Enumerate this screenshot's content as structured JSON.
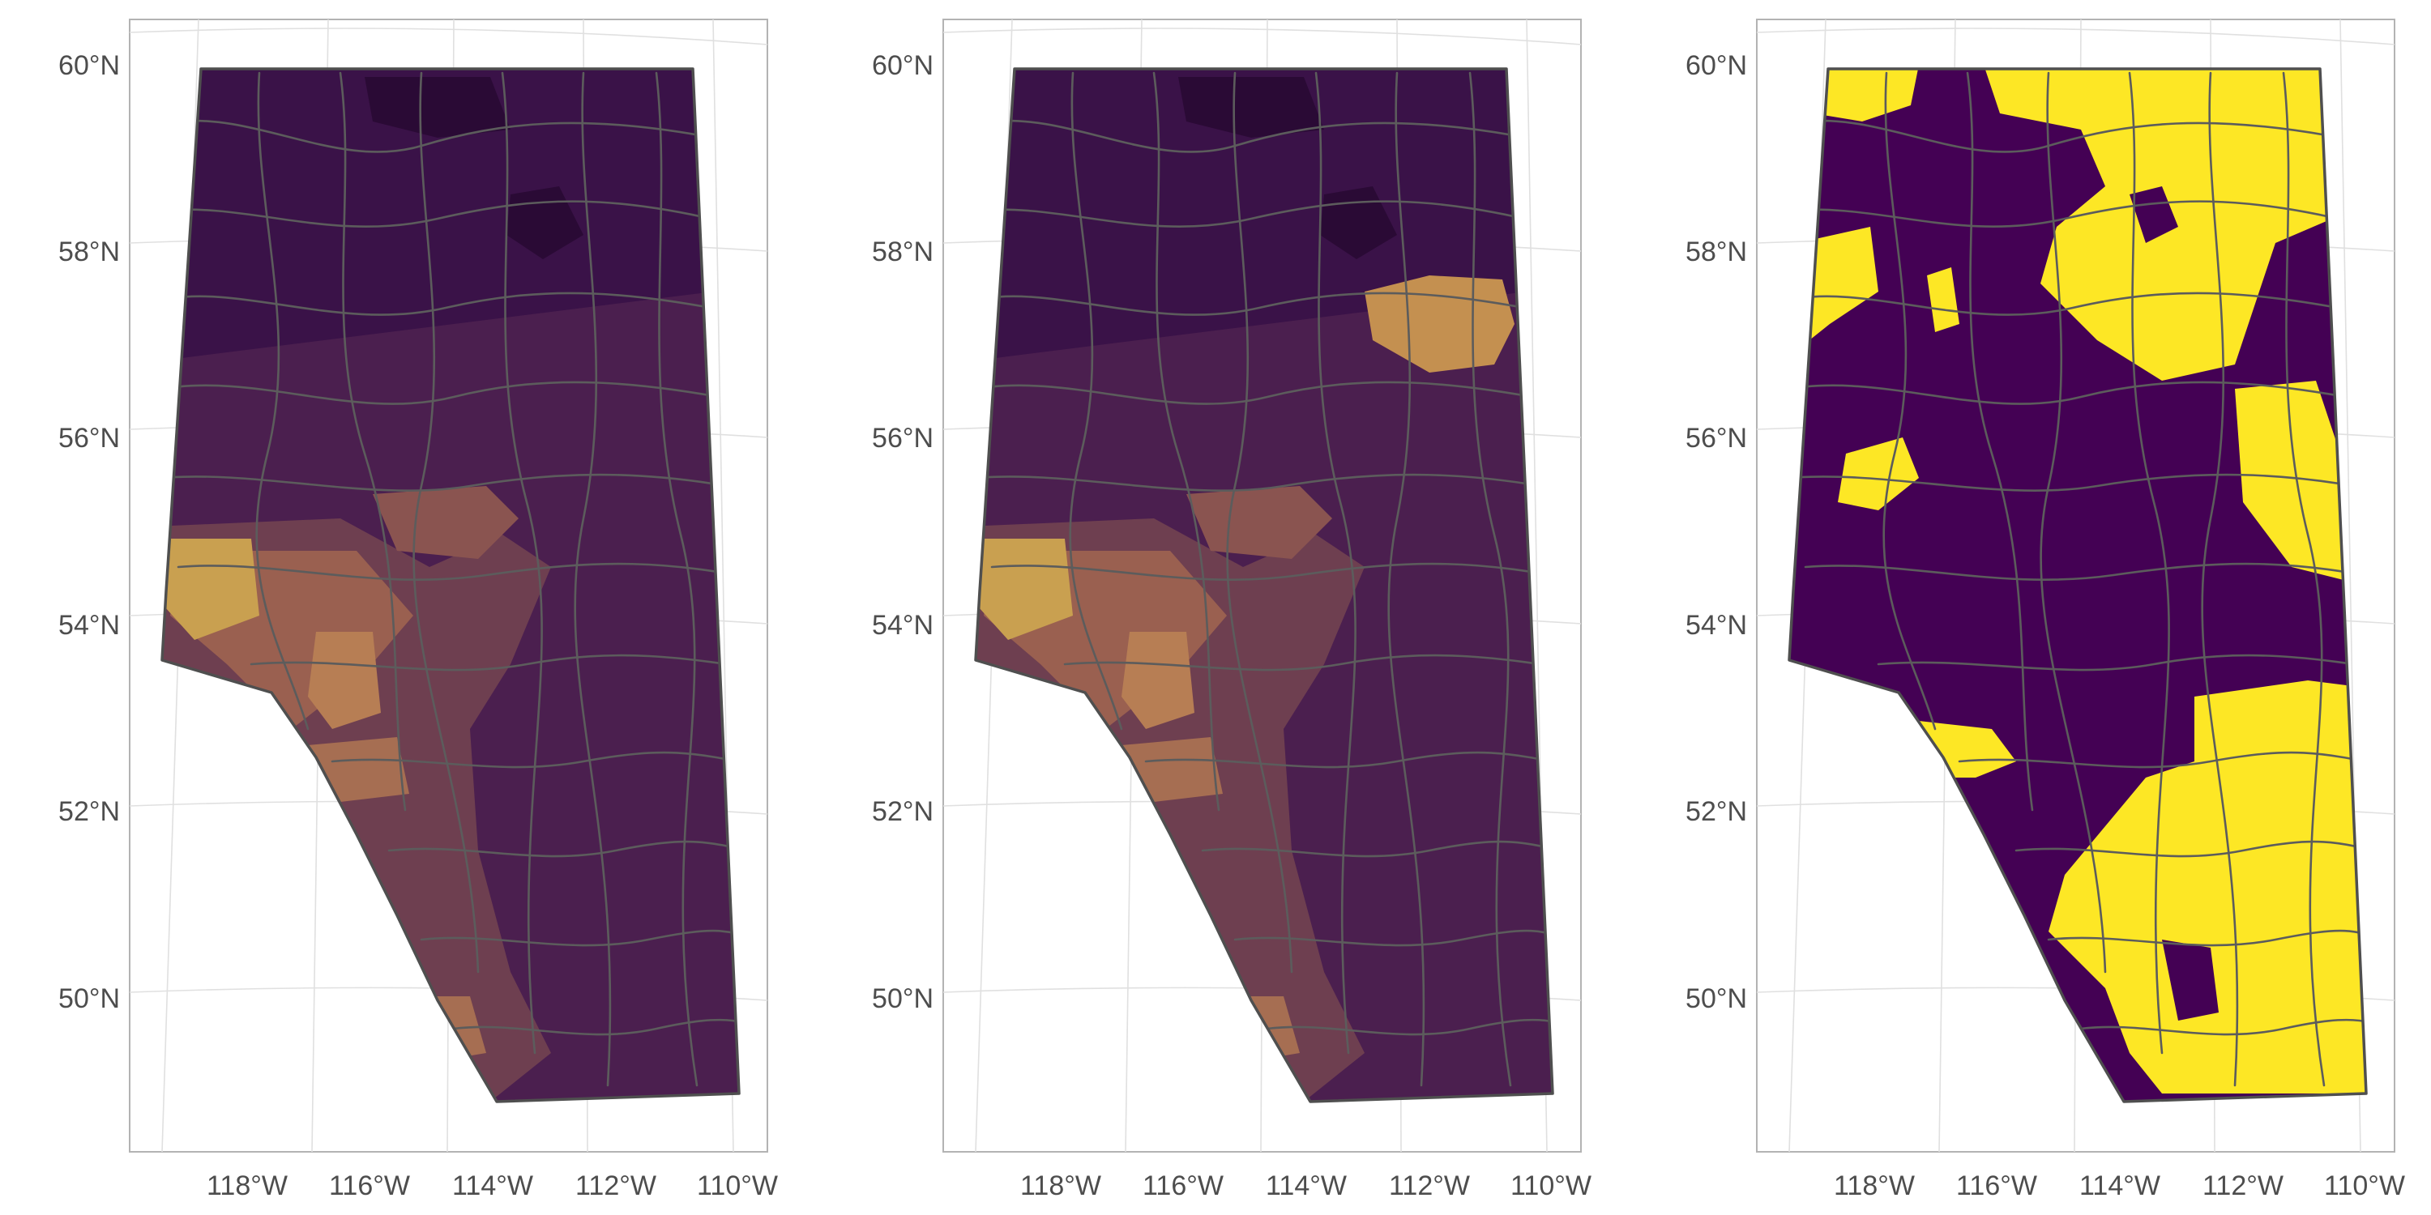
{
  "panels": [
    {
      "name": "map-panel-1",
      "lat_labels": [
        "60°N",
        "58°N",
        "56°N",
        "54°N",
        "52°N",
        "50°N"
      ],
      "lon_labels": [
        "118°W",
        "116°W",
        "114°W",
        "112°W",
        "110°W"
      ]
    },
    {
      "name": "map-panel-2",
      "lat_labels": [
        "60°N",
        "58°N",
        "56°N",
        "54°N",
        "52°N",
        "50°N"
      ],
      "lon_labels": [
        "118°W",
        "116°W",
        "114°W",
        "112°W",
        "110°W"
      ]
    },
    {
      "name": "map-panel-3",
      "lat_labels": [
        "60°N",
        "58°N",
        "56°N",
        "54°N",
        "52°N",
        "50°N"
      ],
      "lon_labels": [
        "118°W",
        "116°W",
        "114°W",
        "112°W",
        "110°W"
      ]
    }
  ],
  "colors": {
    "base_purple": "#4b1f4f",
    "dark_purple": "#2a0a35",
    "mid_brown": "#8a5450",
    "light_brown": "#b77e54",
    "gold": "#c9a050",
    "yellow": "#fde725",
    "viridis_dark": "#440154",
    "outline": "#555555"
  }
}
